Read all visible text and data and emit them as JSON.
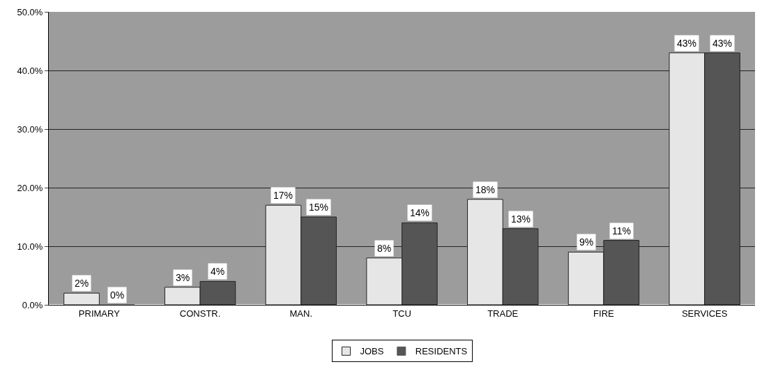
{
  "chart_data": {
    "type": "bar",
    "categories": [
      "PRIMARY",
      "CONSTR.",
      "MAN.",
      "TCU",
      "TRADE",
      "FIRE",
      "SERVICES"
    ],
    "series": [
      {
        "name": "JOBS",
        "color": "#e6e6e6",
        "values": [
          2,
          3,
          17,
          8,
          18,
          9,
          43
        ],
        "value_labels": [
          "2%",
          "3%",
          "17%",
          "8%",
          "18%",
          "9%",
          "43%"
        ]
      },
      {
        "name": "RESIDENTS",
        "color": "#555555",
        "values": [
          0,
          4,
          15,
          14,
          13,
          11,
          43
        ],
        "value_labels": [
          "0%",
          "4%",
          "15%",
          "14%",
          "13%",
          "11%",
          "43%"
        ]
      }
    ],
    "ylim": [
      0,
      50
    ],
    "yticks": [
      {
        "value": 0,
        "label": "0.0%"
      },
      {
        "value": 10,
        "label": "10.0%"
      },
      {
        "value": 20,
        "label": "20.0%"
      },
      {
        "value": 30,
        "label": "30.0%"
      },
      {
        "value": 40,
        "label": "40.0%"
      },
      {
        "value": 50,
        "label": "50.0%"
      }
    ],
    "grid": "y",
    "legend": "bottom"
  }
}
